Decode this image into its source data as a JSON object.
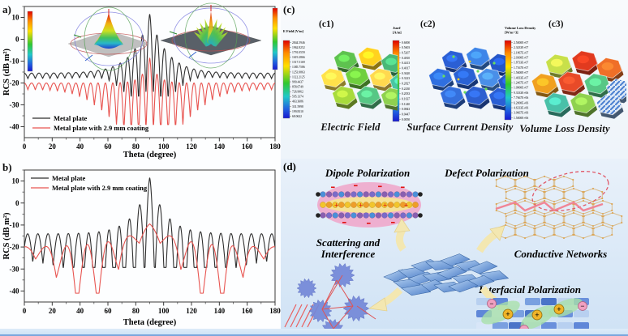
{
  "figure_labels": {
    "a": "a)",
    "b": "b)",
    "c": "(c)",
    "c1": "(c1)",
    "c2": "(c2)",
    "c3": "(c3)",
    "d": "(d)"
  },
  "chart_data": [
    {
      "id": "panel_a",
      "type": "line",
      "xlabel": "Theta (degree)",
      "ylabel": "RCS (dB m²)",
      "xlim": [
        0,
        180
      ],
      "ylim": [
        -45,
        15
      ],
      "xticks": [
        0,
        20,
        40,
        60,
        80,
        100,
        120,
        140,
        160,
        180
      ],
      "yticks": [
        10,
        0,
        -10,
        -20,
        -30,
        -40
      ],
      "x_minor_step": 10,
      "y_minor_step": 5,
      "grid": false,
      "legend_position": "bottom-left",
      "series": [
        {
          "name": "Metal plate",
          "color": "#2f2f2f",
          "main_lobe_theta": 90,
          "main_lobe_peak_dB": 11.5,
          "sidelobe_spacing_deg": 5.3,
          "edge_level_dB": -15.5,
          "model": {
            "peak": 11.5,
            "A": 27,
            "T": 12,
            "D0": 29,
            "u0": 0,
            "w": 20,
            "D1": 2.5,
            "s": 5.3,
            "clip": -26
          }
        },
        {
          "name": "Metal plate with 2.9 mm coating",
          "color": "#e85450",
          "main_lobe_theta": 90,
          "main_lobe_peak_dB": -8.5,
          "deepest_null_dB": -39,
          "deepest_null_theta": 77,
          "edge_level_dB": -18.5,
          "model": {
            "peak": -8.5,
            "A": 11.5,
            "T": 5,
            "D0": 26,
            "u0": 0,
            "w": 35,
            "D1": 3,
            "s": 5.3,
            "clip": -39
          }
        }
      ],
      "insets": [
        {
          "name": "metal-plate-3d-pattern",
          "colorbar_top": "11.7",
          "colorbar_bottom": "-28.7"
        },
        {
          "name": "coated-plate-3d-pattern",
          "colorbar_top": "-6.00",
          "colorbar_bottom": "-49.5"
        }
      ]
    },
    {
      "id": "panel_b",
      "type": "line",
      "xlabel": "Theta (degree)",
      "ylabel": "RCS (dB m²)",
      "xlim": [
        0,
        180
      ],
      "ylim": [
        -45,
        15
      ],
      "xticks": [
        0,
        20,
        40,
        60,
        80,
        100,
        120,
        140,
        160,
        180
      ],
      "yticks": [
        10,
        0,
        -10,
        -20,
        -30,
        -40
      ],
      "x_minor_step": 10,
      "y_minor_step": 5,
      "grid": false,
      "legend_position": "top-left",
      "series": [
        {
          "name": "Metal plate",
          "color": "#2f2f2f",
          "main_lobe_theta": 90,
          "main_lobe_peak_dB": 11.5,
          "sidelobe_spacing_deg": 7.3,
          "edge_level_dB": -24.5,
          "model": {
            "peak": 11.5,
            "A": 25.5,
            "T": 11,
            "D0": 28,
            "u0": 0,
            "w": 45,
            "D1": 12,
            "s": 7.3,
            "clip": -29.3
          }
        },
        {
          "name": "Metal plate with 2.9 mm coating",
          "color": "#e85450",
          "main_lobe_theta": 90,
          "main_lobe_peak_dB": -9.5,
          "deepest_null_dB": -41,
          "deepest_null_theta": 38,
          "edge_level_dB": -19,
          "model": {
            "peak": -9.5,
            "A": 10.5,
            "T": 20,
            "D0": 28,
            "u0": 45,
            "w": 22,
            "D1": 4,
            "s": 14.9,
            "clip": -41
          }
        }
      ]
    }
  ],
  "panel_c": {
    "label": "(c)",
    "sub_panels": [
      {
        "label": "(c1)",
        "caption": "Electric Field",
        "colorbar": {
          "title_lines": [
            "E Field [V/m]"
          ],
          "values": [
            "2844.5946",
            "1962.8252",
            "1791.0559",
            "1619.2866",
            "1517.5169",
            "1385.7586",
            "1253.9863",
            "1122.2125",
            "990.4437",
            "858.6749",
            "726.9062",
            "595.1374",
            "463.3686",
            "331.5998",
            "199.8310",
            "68.0622"
          ]
        }
      },
      {
        "label": "(c2)",
        "caption": "Surface Current Density",
        "colorbar": {
          "title_lines": [
            "Jsurf",
            "[A/m]"
          ],
          "values": [
            "0.6000",
            "0.5603",
            "0.5207",
            "0.4810",
            "0.4413",
            "0.4017",
            "0.3620",
            "0.3223",
            "0.2827",
            "0.2430",
            "0.2033",
            "0.1637",
            "0.1240",
            "0.0843",
            "0.0447",
            "0.0050"
          ]
        }
      },
      {
        "label": "(c3)",
        "caption": "Volume Loss Density",
        "colorbar": {
          "title_lines": [
            "Volume Loss Density",
            "[W/m^3]"
          ],
          "values": [
            "2.5000E+07",
            "2.3433E+07",
            "2.1867E+07",
            "2.0300E+07",
            "1.8733E+07",
            "1.7167E+07",
            "1.5600E+07",
            "1.4033E+07",
            "1.2467E+07",
            "1.0900E+07",
            "9.3333E+06",
            "7.7667E+06",
            "6.2000E+06",
            "4.6333E+06",
            "3.0667E+06",
            "1.5000E+06"
          ]
        }
      }
    ]
  },
  "panel_d": {
    "label": "(d)",
    "labels": {
      "dipole": "Dipole Polarization",
      "defect": "Defect Polarization",
      "scattering_line1": "Scattering and",
      "scattering_line2": "Interference",
      "conductive": "Conductive Networks",
      "interfacial": "Interfacial Polarization"
    },
    "charge_symbols": {
      "positive": "+",
      "negative": "−"
    }
  },
  "colors": {
    "metal_plate_curve": "#2f2f2f",
    "coated_curve": "#e85450",
    "panel_d_background": "#d9e8f6",
    "bottom_edge_line": "#7aa6dd",
    "arrow_fill": "#f3e7b1"
  }
}
